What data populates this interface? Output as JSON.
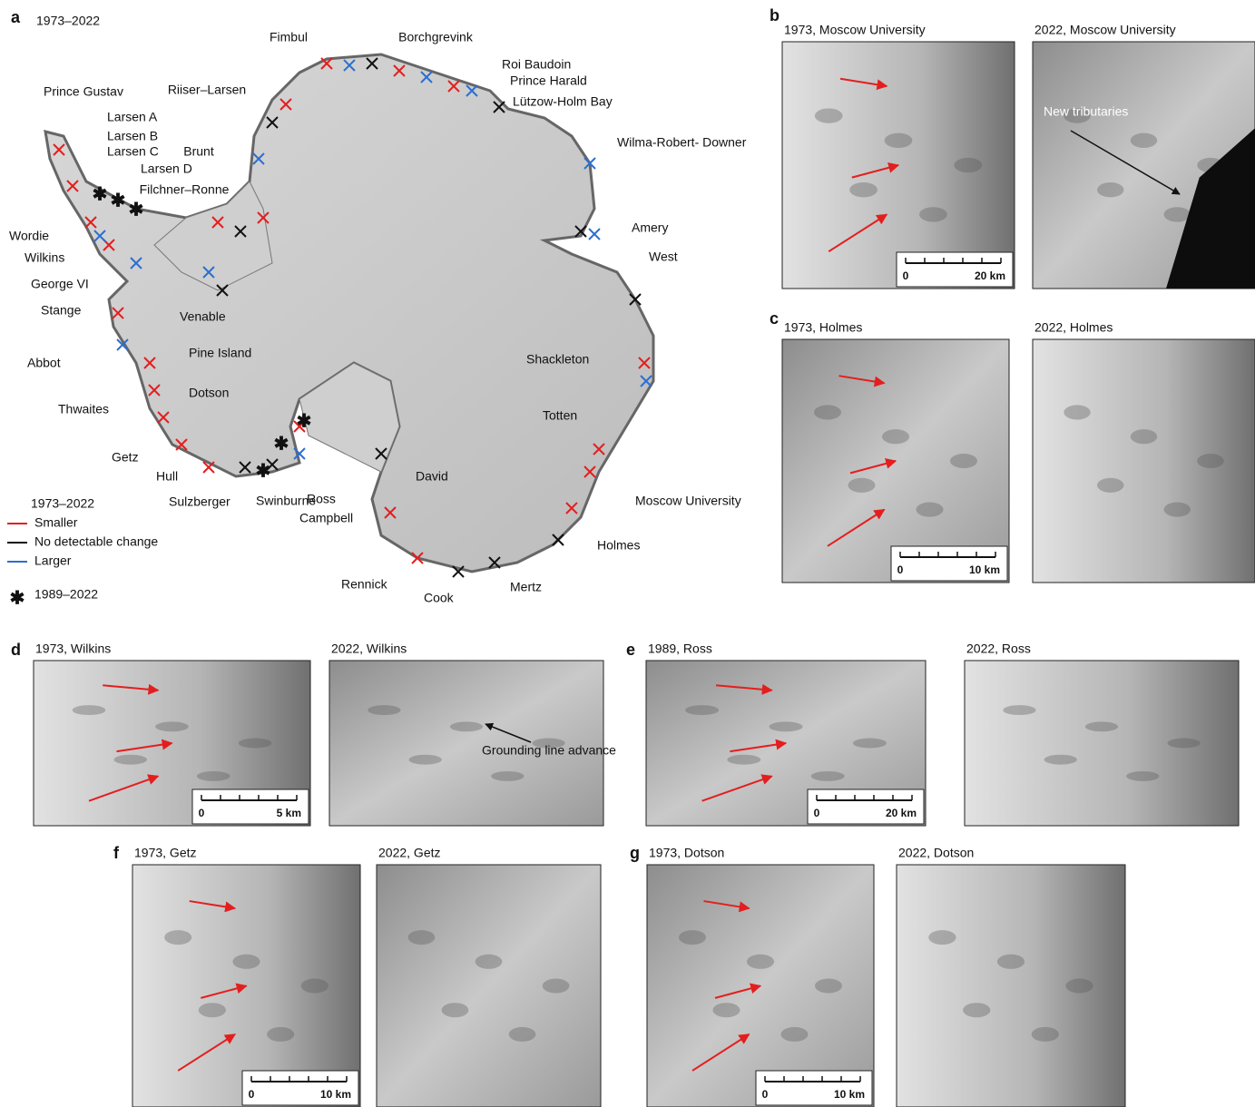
{
  "panels": [
    {
      "label": "a",
      "subtitle": "1973–2022",
      "places": [
        "Fimbul",
        "Borchgrevink",
        "Roi Baudoin",
        "Prince Harald",
        "Lützow-Holm Bay",
        "Riiser–Larsen",
        "Prince Gustav",
        "Larsen A",
        "Larsen B",
        "Larsen C",
        "Larsen D",
        "Filchner–Ronne",
        "Brunt",
        "Wilma-Robert- Downer",
        "Amery",
        "West",
        "Wordie",
        "Wilkins",
        "George VI",
        "Stange",
        "Venable",
        "Pine Island",
        "Abbot",
        "Dotson",
        "Thwaites",
        "Getz",
        "Hull",
        "Sulzberger",
        "Swinburne",
        "Ross",
        "David",
        "Campbell",
        "Totten",
        "Moscow University",
        "Shackleton",
        "Holmes",
        "Rennick",
        "Cook",
        "Mertz"
      ],
      "legend": {
        "title": "1973–2022",
        "items": [
          "Smaller",
          "No detectable change",
          "Larger"
        ],
        "star": "1989–2022"
      }
    },
    {
      "label": "b",
      "images": [
        {
          "title": "1973, Moscow University",
          "scale": [
            "0",
            "20 km"
          ]
        },
        {
          "title": "2022, Moscow University",
          "annotation": "New tributaries"
        }
      ]
    },
    {
      "label": "c",
      "images": [
        {
          "title": "1973, Holmes",
          "scale": [
            "0",
            "10 km"
          ]
        },
        {
          "title": "2022, Holmes"
        }
      ]
    },
    {
      "label": "d",
      "images": [
        {
          "title": "1973, Wilkins",
          "scale": [
            "0",
            "5 km"
          ]
        },
        {
          "title": "2022, Wilkins",
          "annotation": "Grounding line advance"
        }
      ]
    },
    {
      "label": "e",
      "images": [
        {
          "title": "1989, Ross",
          "scale": [
            "0",
            "20 km"
          ]
        },
        {
          "title": "2022, Ross"
        }
      ]
    },
    {
      "label": "f",
      "images": [
        {
          "title": "1973, Getz",
          "scale": [
            "0",
            "10 km"
          ]
        },
        {
          "title": "2022, Getz"
        }
      ]
    },
    {
      "label": "g",
      "images": [
        {
          "title": "1973, Dotson",
          "scale": [
            "0",
            "10 km"
          ]
        },
        {
          "title": "2022, Dotson"
        }
      ]
    }
  ]
}
